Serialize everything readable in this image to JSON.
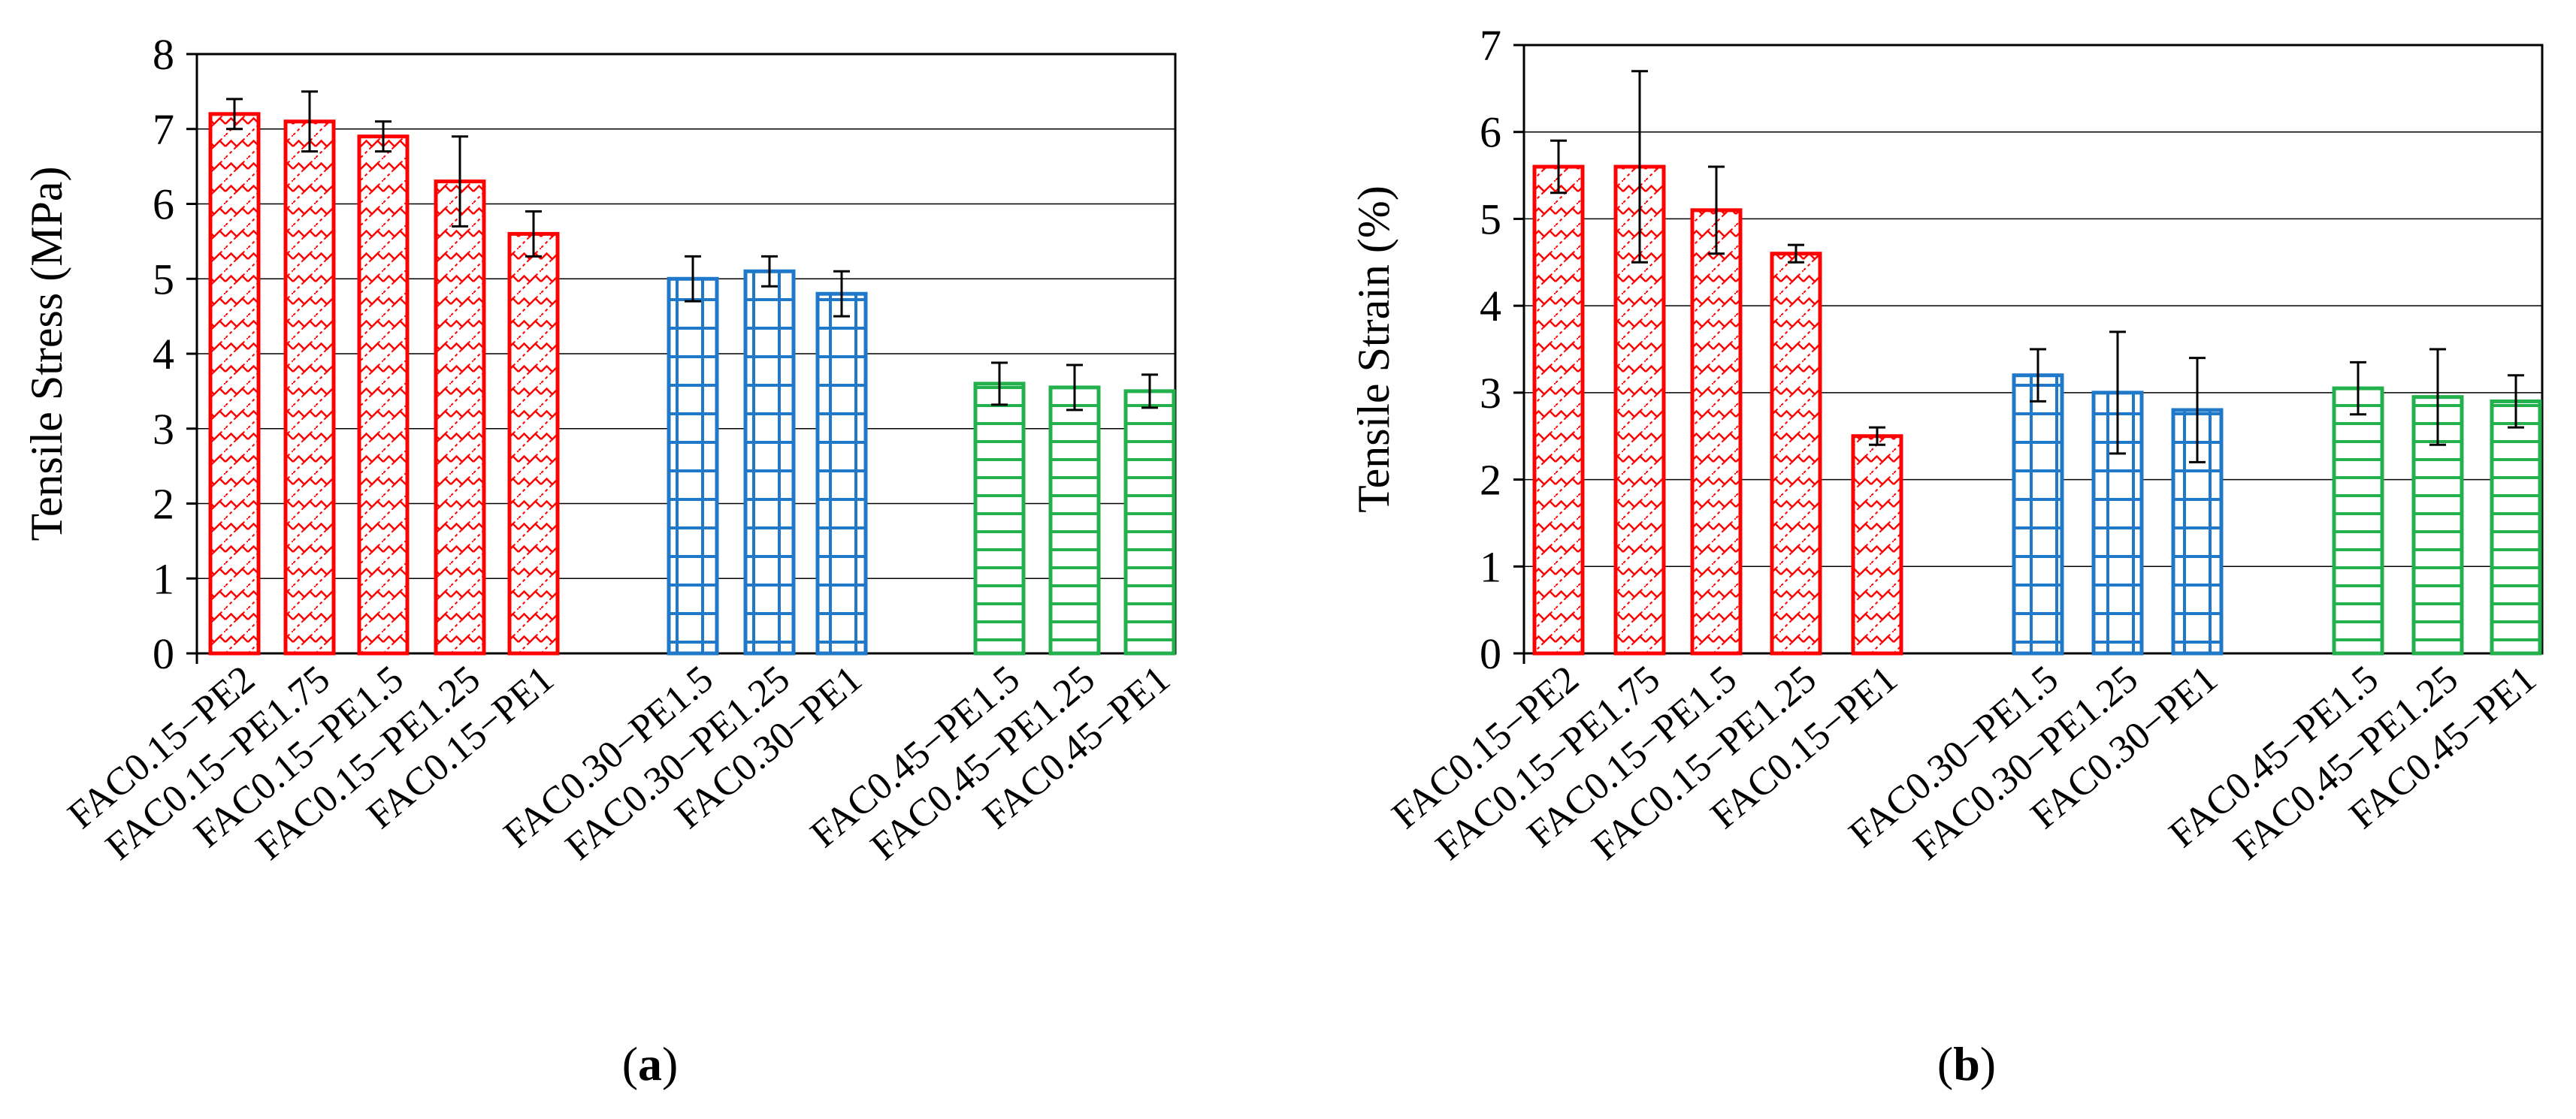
{
  "chart_data": [
    {
      "type": "bar",
      "panel": "a",
      "title": "",
      "xlabel": "",
      "ylabel": "Tensile Stress (MPa)",
      "ylim": [
        0,
        8
      ],
      "yticks": [
        "0",
        "1",
        "2",
        "3",
        "4",
        "5",
        "6",
        "7",
        "8"
      ],
      "grid": true,
      "groups": [
        {
          "name": "FAC0.15",
          "color": "#ff0000",
          "pattern": "zigzag",
          "categories": [
            "FAC0.15−PE2",
            "FAC0.15−PE1.75",
            "FAC0.15−PE1.5",
            "FAC0.15−PE1.25",
            "FAC0.15−PE1"
          ],
          "values": [
            7.2,
            7.1,
            6.9,
            6.3,
            5.6
          ],
          "errors": [
            0.2,
            0.4,
            0.2,
            0.6,
            0.3
          ]
        },
        {
          "name": "FAC0.30",
          "color": "#1f78c8",
          "pattern": "grid",
          "categories": [
            "FAC0.30−PE1.5",
            "FAC0.30−PE1.25",
            "FAC0.30−PE1"
          ],
          "values": [
            5.0,
            5.1,
            4.8
          ],
          "errors": [
            0.3,
            0.2,
            0.3
          ]
        },
        {
          "name": "FAC0.45",
          "color": "#22b14c",
          "pattern": "horizontal",
          "categories": [
            "FAC0.45−PE1.5",
            "FAC0.45−PE1.25",
            "FAC0.45−PE1"
          ],
          "values": [
            3.6,
            3.55,
            3.5
          ],
          "errors": [
            0.28,
            0.3,
            0.22
          ]
        }
      ]
    },
    {
      "type": "bar",
      "panel": "b",
      "title": "",
      "xlabel": "",
      "ylabel": "Tensile Strain (%)",
      "ylim": [
        0,
        7
      ],
      "yticks": [
        "0",
        "1",
        "2",
        "3",
        "4",
        "5",
        "6",
        "7"
      ],
      "grid": true,
      "groups": [
        {
          "name": "FAC0.15",
          "color": "#ff0000",
          "pattern": "zigzag",
          "categories": [
            "FAC0.15−PE2",
            "FAC0.15−PE1.75",
            "FAC0.15−PE1.5",
            "FAC0.15−PE1.25",
            "FAC0.15−PE1"
          ],
          "values": [
            5.6,
            5.6,
            5.1,
            4.6,
            2.5
          ],
          "errors": [
            0.3,
            1.1,
            0.5,
            0.1,
            0.1
          ]
        },
        {
          "name": "FAC0.30",
          "color": "#1f78c8",
          "pattern": "grid",
          "categories": [
            "FAC0.30−PE1.5",
            "FAC0.30−PE1.25",
            "FAC0.30−PE1"
          ],
          "values": [
            3.2,
            3.0,
            2.8
          ],
          "errors": [
            0.3,
            0.7,
            0.6
          ]
        },
        {
          "name": "FAC0.45",
          "color": "#22b14c",
          "pattern": "horizontal",
          "categories": [
            "FAC0.45−PE1.5",
            "FAC0.45−PE1.25",
            "FAC0.45−PE1"
          ],
          "values": [
            3.05,
            2.95,
            2.9
          ],
          "errors": [
            0.3,
            0.55,
            0.3
          ]
        }
      ]
    }
  ],
  "labels": {
    "a": "a",
    "b": "b"
  }
}
